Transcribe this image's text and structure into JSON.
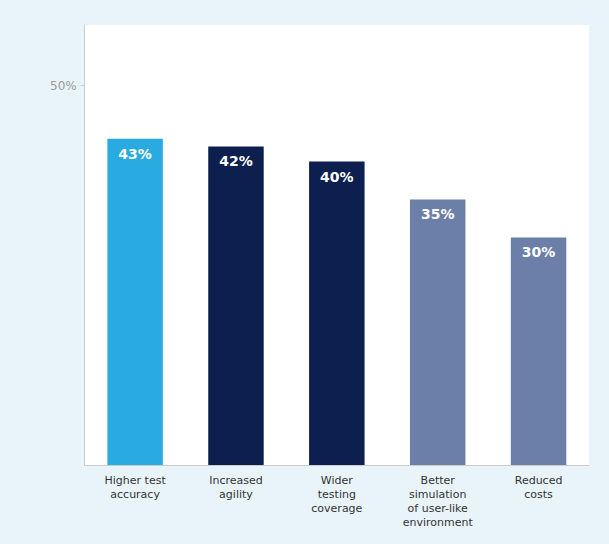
{
  "chart_data": {
    "type": "bar",
    "categories": [
      "Higher test\naccuracy",
      "Increased\nagility",
      "Wider\ntesting\ncoverage",
      "Better\nsimulation\nof user-like\nenvironment",
      "Reduced\ncosts"
    ],
    "values": [
      43,
      42,
      40,
      35,
      30
    ],
    "value_labels": [
      "43%",
      "42%",
      "40%",
      "35%",
      "30%"
    ],
    "colors": [
      "#29ABE2",
      "#0D1F4E",
      "#0D1F4E",
      "#6B7FA8",
      "#6B7FA8"
    ],
    "ylim": [
      0,
      58
    ],
    "yticks": [
      {
        "value": 50,
        "label": "50%"
      }
    ],
    "grid": false,
    "data_labels": true
  }
}
